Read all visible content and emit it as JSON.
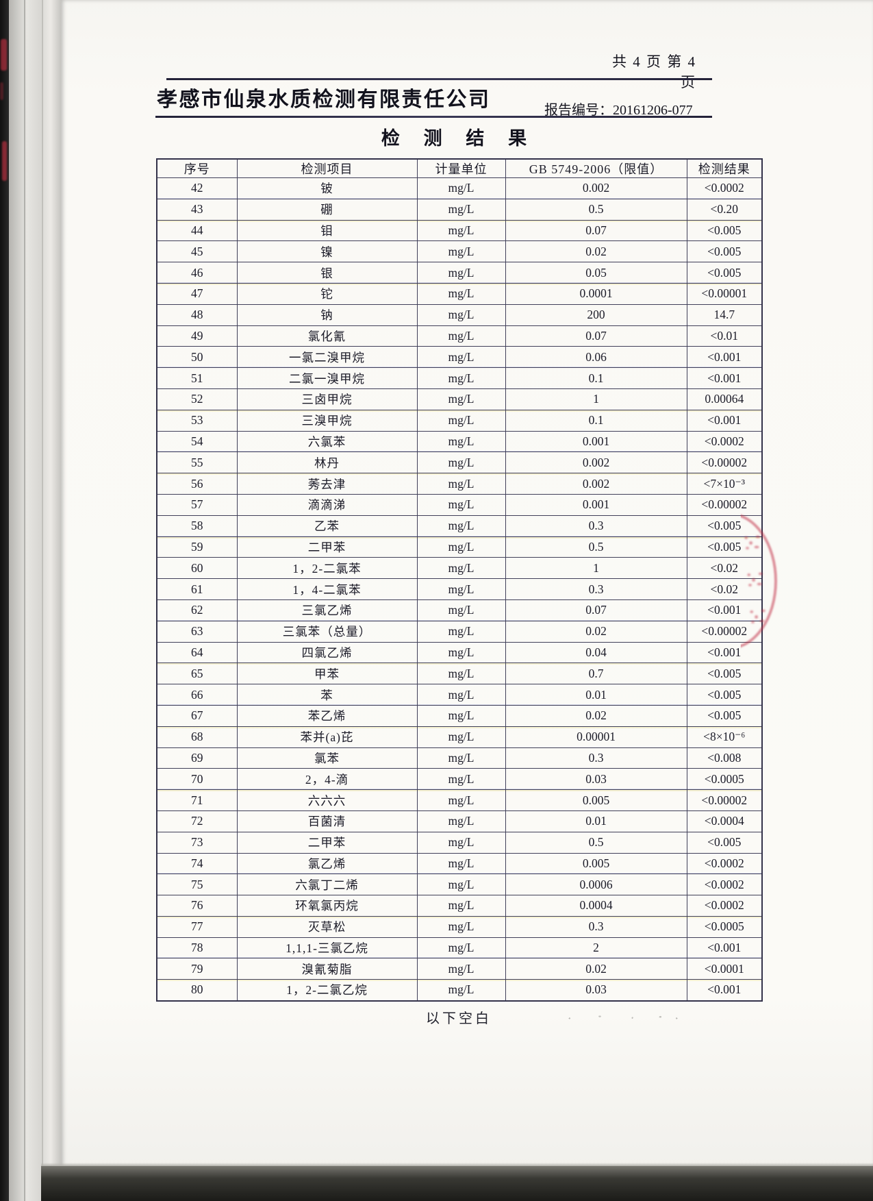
{
  "page": {
    "page_info": "共 4 页 第 4 页",
    "company_name": "孝感市仙泉水质检测有限责任公司",
    "report_no_label": "报告编号：",
    "report_no": "20161206-077",
    "title": "检 测 结 果",
    "footer_note": "以下空白",
    "accent_colors": {
      "stamp_red": "#c02a42",
      "ink": "#1a1a26",
      "paper": "#fbfaf6"
    }
  },
  "table": {
    "headers": [
      "序号",
      "检测项目",
      "计量单位",
      "GB 5749-2006（限值）",
      "检测结果"
    ],
    "rows": [
      [
        "42",
        "铍",
        "mg/L",
        "0.002",
        "<0.0002"
      ],
      [
        "43",
        "硼",
        "mg/L",
        "0.5",
        "<0.20"
      ],
      [
        "44",
        "钼",
        "mg/L",
        "0.07",
        "<0.005"
      ],
      [
        "45",
        "镍",
        "mg/L",
        "0.02",
        "<0.005"
      ],
      [
        "46",
        "银",
        "mg/L",
        "0.05",
        "<0.005"
      ],
      [
        "47",
        "铊",
        "mg/L",
        "0.0001",
        "<0.00001"
      ],
      [
        "48",
        "钠",
        "mg/L",
        "200",
        "14.7"
      ],
      [
        "49",
        "氯化氰",
        "mg/L",
        "0.07",
        "<0.01"
      ],
      [
        "50",
        "一氯二溴甲烷",
        "mg/L",
        "0.06",
        "<0.001"
      ],
      [
        "51",
        "二氯一溴甲烷",
        "mg/L",
        "0.1",
        "<0.001"
      ],
      [
        "52",
        "三卤甲烷",
        "mg/L",
        "1",
        "0.00064"
      ],
      [
        "53",
        "三溴甲烷",
        "mg/L",
        "0.1",
        "<0.001"
      ],
      [
        "54",
        "六氯苯",
        "mg/L",
        "0.001",
        "<0.0002"
      ],
      [
        "55",
        "林丹",
        "mg/L",
        "0.002",
        "<0.00002"
      ],
      [
        "56",
        "莠去津",
        "mg/L",
        "0.002",
        "<7×10⁻³"
      ],
      [
        "57",
        "滴滴涕",
        "mg/L",
        "0.001",
        "<0.00002"
      ],
      [
        "58",
        "乙苯",
        "mg/L",
        "0.3",
        "<0.005"
      ],
      [
        "59",
        "二甲苯",
        "mg/L",
        "0.5",
        "<0.005"
      ],
      [
        "60",
        "1，2-二氯苯",
        "mg/L",
        "1",
        "<0.02"
      ],
      [
        "61",
        "1，4-二氯苯",
        "mg/L",
        "0.3",
        "<0.02"
      ],
      [
        "62",
        "三氯乙烯",
        "mg/L",
        "0.07",
        "<0.001"
      ],
      [
        "63",
        "三氯苯（总量）",
        "mg/L",
        "0.02",
        "<0.00002"
      ],
      [
        "64",
        "四氯乙烯",
        "mg/L",
        "0.04",
        "<0.001"
      ],
      [
        "65",
        "甲苯",
        "mg/L",
        "0.7",
        "<0.005"
      ],
      [
        "66",
        "苯",
        "mg/L",
        "0.01",
        "<0.005"
      ],
      [
        "67",
        "苯乙烯",
        "mg/L",
        "0.02",
        "<0.005"
      ],
      [
        "68",
        "苯并(a)芘",
        "mg/L",
        "0.00001",
        "<8×10⁻⁶"
      ],
      [
        "69",
        "氯苯",
        "mg/L",
        "0.3",
        "<0.008"
      ],
      [
        "70",
        "2，4-滴",
        "mg/L",
        "0.03",
        "<0.0005"
      ],
      [
        "71",
        "六六六",
        "mg/L",
        "0.005",
        "<0.00002"
      ],
      [
        "72",
        "百菌清",
        "mg/L",
        "0.01",
        "<0.0004"
      ],
      [
        "73",
        "二甲苯",
        "mg/L",
        "0.5",
        "<0.005"
      ],
      [
        "74",
        "氯乙烯",
        "mg/L",
        "0.005",
        "<0.0002"
      ],
      [
        "75",
        "六氯丁二烯",
        "mg/L",
        "0.0006",
        "<0.0002"
      ],
      [
        "76",
        "环氧氯丙烷",
        "mg/L",
        "0.0004",
        "<0.0002"
      ],
      [
        "77",
        "灭草松",
        "mg/L",
        "0.3",
        "<0.0005"
      ],
      [
        "78",
        "1,1,1-三氯乙烷",
        "mg/L",
        "2",
        "<0.001"
      ],
      [
        "79",
        "溴氰菊脂",
        "mg/L",
        "0.02",
        "<0.0001"
      ],
      [
        "80",
        "1，2-二氯乙烷",
        "mg/L",
        "0.03",
        "<0.001"
      ]
    ]
  }
}
